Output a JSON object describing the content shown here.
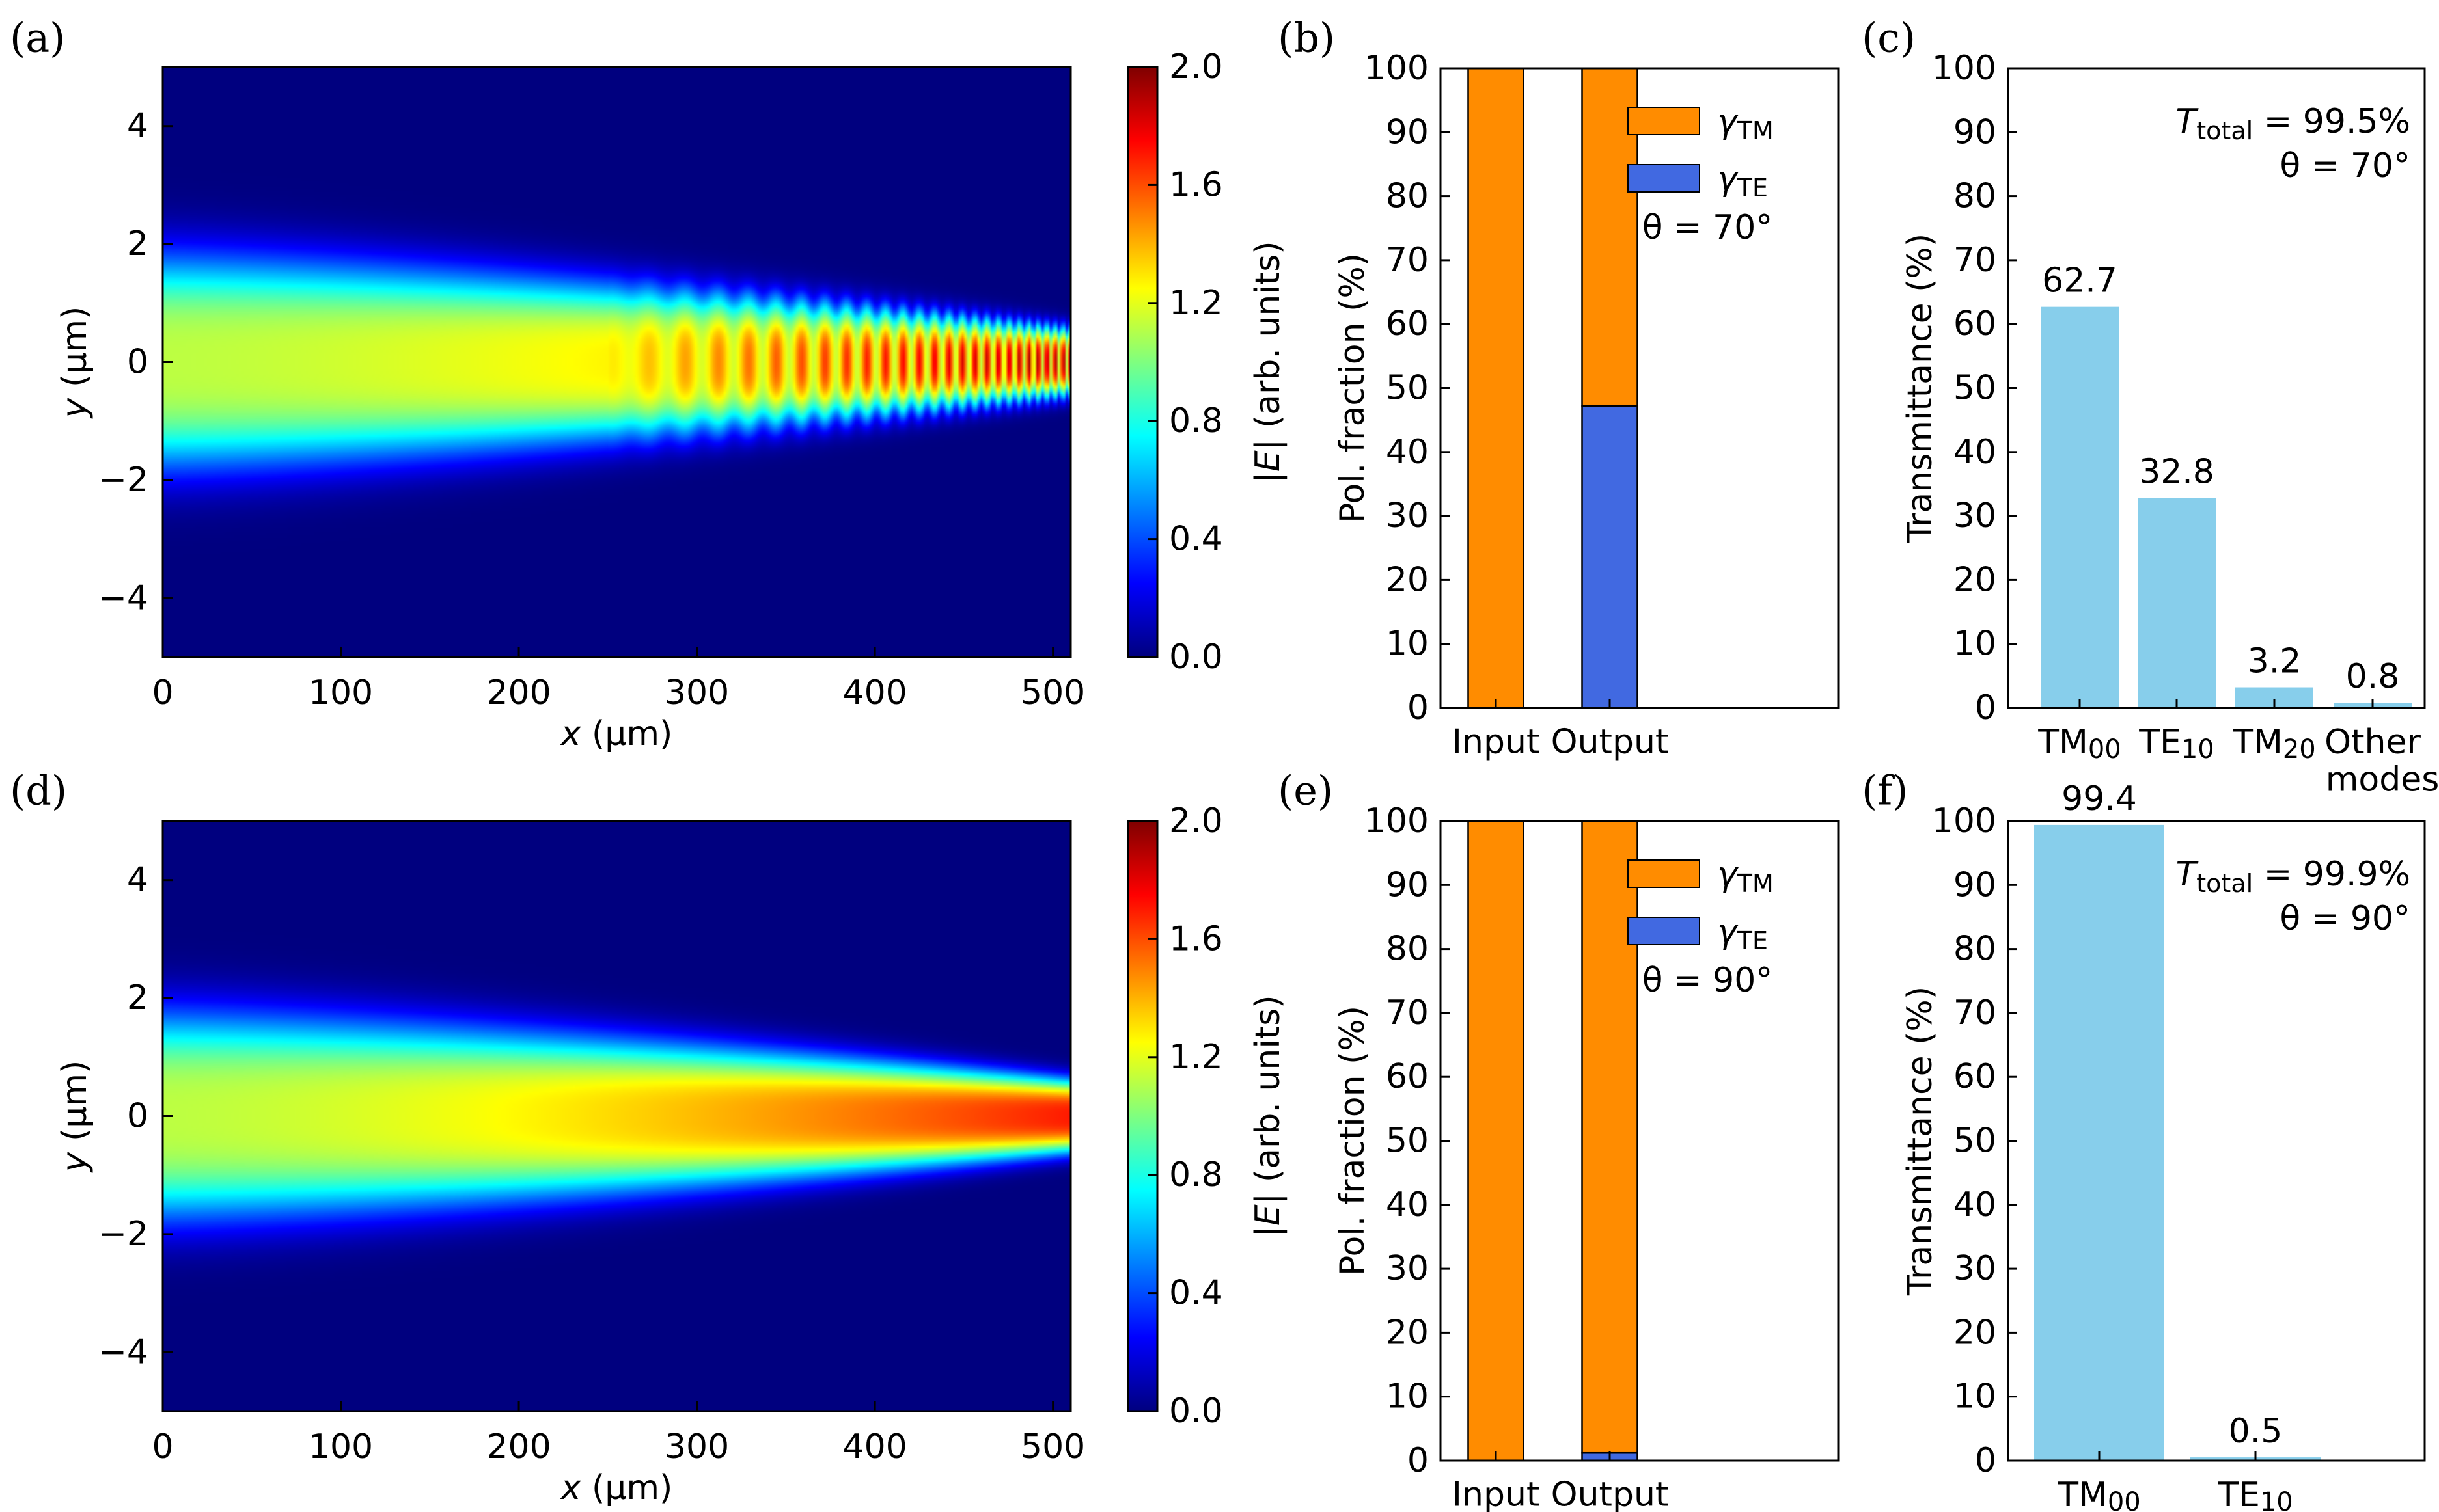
{
  "figure": {
    "colormap": [
      "#00007f",
      "#0000ff",
      "#007fff",
      "#00ffff",
      "#7fff7f",
      "#ffff00",
      "#ff7f00",
      "#ff0000",
      "#7f0000"
    ],
    "bar_colors": {
      "tm": "#ff8c00",
      "te": "#4169e1",
      "transmittance": "#87ceeb"
    }
  },
  "chart_data": [
    {
      "panel": "a",
      "panel_label": "(a)",
      "type": "heatmap",
      "title": "",
      "xlabel_var": "x",
      "xlabel_unit": " (μm)",
      "ylabel_var": "y",
      "ylabel_unit": " (μm)",
      "xlim": [
        0,
        510
      ],
      "ylim": [
        -5,
        5
      ],
      "xticks": [
        0,
        100,
        200,
        300,
        400,
        500
      ],
      "yticks": [
        -4,
        -2,
        0,
        2,
        4
      ],
      "beam": {
        "w_start": 1.8,
        "w_end": 0.55,
        "x_max": 510,
        "peak_start": 1.12,
        "peak_end": 1.55,
        "fringe_onset": 250,
        "fringe_amp": 0.28
      },
      "colorbar": {
        "range": [
          0.0,
          2.0
        ],
        "ticks": [
          "0.0",
          "0.4",
          "0.8",
          "1.2",
          "1.6",
          "2.0"
        ],
        "label_var": "|E|",
        "label_unit": " (arb. units)"
      }
    },
    {
      "panel": "b",
      "panel_label": "(b)",
      "type": "bar",
      "stacked": true,
      "categories": [
        "Input",
        "Output"
      ],
      "series": [
        {
          "name": "γTM",
          "sub": "TM",
          "values": [
            100,
            52.8
          ]
        },
        {
          "name": "γTE",
          "sub": "TE",
          "values": [
            0,
            47.2
          ]
        }
      ],
      "ylabel": "Pol. fraction (%)",
      "ylim": [
        0,
        100
      ],
      "yticks": [
        0,
        10,
        20,
        30,
        40,
        50,
        60,
        70,
        80,
        90,
        100
      ],
      "legend": {
        "position": "top-right",
        "entries": [
          {
            "symbol": "γ",
            "sub": "TM"
          },
          {
            "symbol": "γ",
            "sub": "TE"
          }
        ]
      },
      "annotation": "θ = 70°"
    },
    {
      "panel": "c",
      "panel_label": "(c)",
      "type": "bar",
      "categories": [
        {
          "base": "TM",
          "sub": "00"
        },
        {
          "base": "TE",
          "sub": "10"
        },
        {
          "base": "TM",
          "sub": "20"
        },
        {
          "base": "Other",
          "line2": "modes"
        }
      ],
      "values": [
        62.7,
        32.8,
        3.2,
        0.8
      ],
      "value_labels": [
        "62.7",
        "32.8",
        "3.2",
        "0.8"
      ],
      "ylabel": "Transmittance (%)",
      "ylim": [
        0,
        100
      ],
      "yticks": [
        0,
        10,
        20,
        30,
        40,
        50,
        60,
        70,
        80,
        90,
        100
      ],
      "annotation": {
        "total_sym": "T",
        "total_sub": "total",
        "total_val": " = 99.5%",
        "theta": "θ = 70°"
      }
    },
    {
      "panel": "d",
      "panel_label": "(d)",
      "type": "heatmap",
      "title": "",
      "xlabel_var": "x",
      "xlabel_unit": " (μm)",
      "ylabel_var": "y",
      "ylabel_unit": " (μm)",
      "xlim": [
        0,
        510
      ],
      "ylim": [
        -5,
        5
      ],
      "xticks": [
        0,
        100,
        200,
        300,
        400,
        500
      ],
      "yticks": [
        -4,
        -2,
        0,
        2,
        4
      ],
      "beam": {
        "w_start": 1.75,
        "w_end": 0.6,
        "x_max": 510,
        "peak_start": 1.12,
        "peak_end": 1.7,
        "fringe_onset": 510,
        "fringe_amp": 0
      },
      "colorbar": {
        "range": [
          0.0,
          2.0
        ],
        "ticks": [
          "0.0",
          "0.4",
          "0.8",
          "1.2",
          "1.6",
          "2.0"
        ],
        "label_var": "|E|",
        "label_unit": " (arb. units)"
      }
    },
    {
      "panel": "e",
      "panel_label": "(e)",
      "type": "bar",
      "stacked": true,
      "categories": [
        "Input",
        "Output"
      ],
      "series": [
        {
          "name": "γTM",
          "sub": "TM",
          "values": [
            100,
            98.8
          ]
        },
        {
          "name": "γTE",
          "sub": "TE",
          "values": [
            0,
            1.2
          ]
        }
      ],
      "ylabel": "Pol. fraction (%)",
      "ylim": [
        0,
        100
      ],
      "yticks": [
        0,
        10,
        20,
        30,
        40,
        50,
        60,
        70,
        80,
        90,
        100
      ],
      "legend": {
        "position": "top-right",
        "entries": [
          {
            "symbol": "γ",
            "sub": "TM"
          },
          {
            "symbol": "γ",
            "sub": "TE"
          }
        ]
      },
      "annotation": "θ = 90°"
    },
    {
      "panel": "f",
      "panel_label": "(f)",
      "type": "bar",
      "categories": [
        {
          "base": "TM",
          "sub": "00"
        },
        {
          "base": "TE",
          "sub": "10"
        }
      ],
      "values": [
        99.4,
        0.5
      ],
      "value_labels": [
        "99.4",
        "0.5"
      ],
      "ylabel": "Transmittance (%)",
      "ylim": [
        0,
        100
      ],
      "yticks": [
        0,
        10,
        20,
        30,
        40,
        50,
        60,
        70,
        80,
        90,
        100
      ],
      "annotation": {
        "total_sym": "T",
        "total_sub": "total",
        "total_val": " = 99.9%",
        "theta": "θ = 90°"
      }
    }
  ]
}
